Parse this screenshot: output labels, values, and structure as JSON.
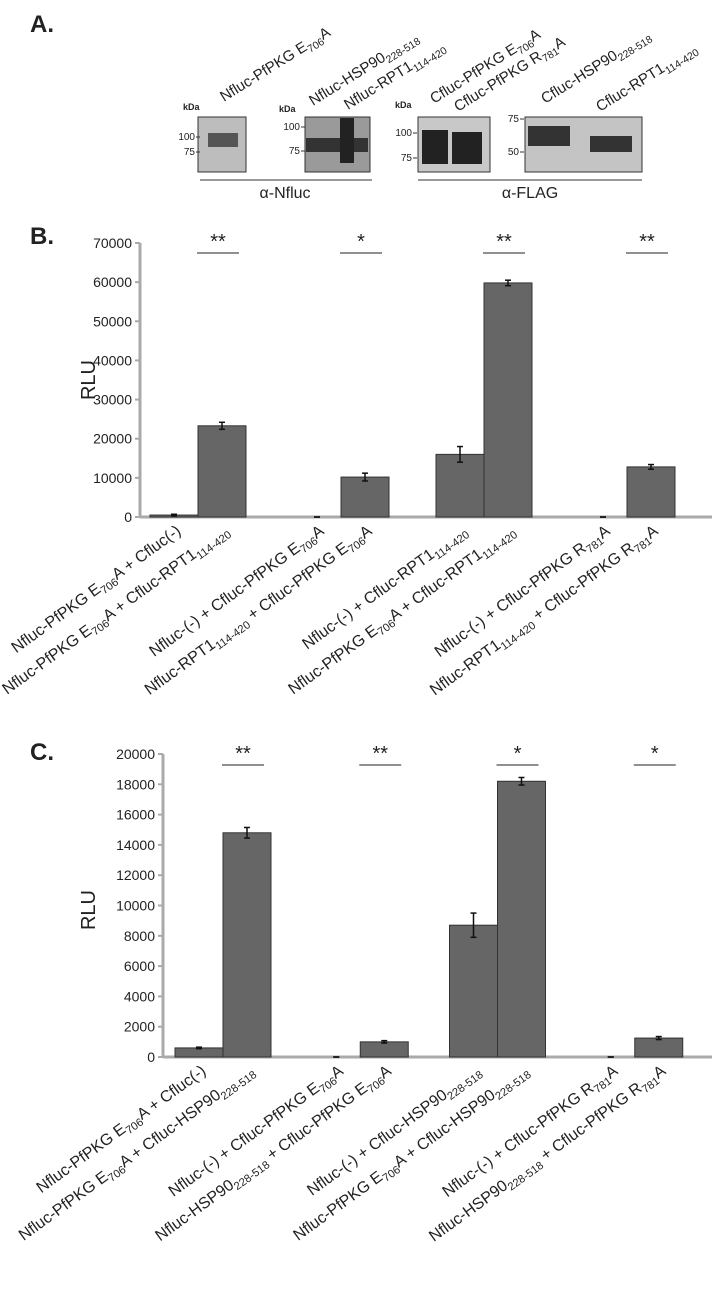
{
  "panel_labels": [
    "A.",
    "B.",
    "C."
  ],
  "panel_a": {
    "blot_labels": [
      [
        "Nfluc-PfPKG E",
        {
          "sub": "706"
        },
        "A"
      ],
      [
        "Nfluc-HSP90",
        {
          "sub": "228-518"
        }
      ],
      [
        "Nfluc-RPT1",
        {
          "sub": "114-420"
        }
      ],
      [
        "Cfluc-PfPKG E",
        {
          "sub": "706"
        },
        "A"
      ],
      [
        "Cfluc-PfPKG R",
        {
          "sub": "781"
        },
        "A"
      ],
      [
        "Cfluc-HSP90",
        {
          "sub": "228-518"
        }
      ],
      [
        "Cfluc-RPT1",
        {
          "sub": "114-420"
        }
      ]
    ],
    "blots": [
      {
        "kda": "kDa",
        "markers": [
          100,
          75
        ]
      },
      {
        "kda": "kDa",
        "markers": [
          100,
          75
        ]
      },
      {
        "kda": "kDa",
        "markers": [
          100,
          75
        ]
      },
      {
        "markers": [
          75,
          50
        ]
      }
    ],
    "antibodies": [
      "α-Nfluc",
      "α-FLAG"
    ]
  },
  "chart_data": [
    {
      "type": "bar",
      "y_label": "RLU",
      "color": "#666666",
      "categories": [
        [
          "Nfluc-PfPKG E",
          {
            "sub": "706"
          },
          "A + Cfluc(-)"
        ],
        [
          "Nfluc-PfPKG E",
          {
            "sub": "706"
          },
          "A + Cfluc-RPT1",
          {
            "sub": "114-420"
          }
        ],
        [
          "Nfluc-(-) + Cfluc-PfPKG E",
          {
            "sub": "706"
          },
          "A"
        ],
        [
          "Nfluc-RPT1",
          {
            "sub": "114-420"
          },
          " + Cfluc-PfPKG E",
          {
            "sub": "706"
          },
          "A"
        ],
        [
          "Nfluc-(-) + Cfluc-RPT1",
          {
            "sub": "114-420"
          }
        ],
        [
          "Nfluc-PfPKG E",
          {
            "sub": "706"
          },
          "A + Cfluc-RPT1",
          {
            "sub": "114-420"
          }
        ],
        [
          "Nfluc-(-) + Cfluc-PfPKG R",
          {
            "sub": "781"
          },
          "A"
        ],
        [
          "Nfluc-RPT1",
          {
            "sub": "114-420"
          },
          " + Cfluc-PfPKG R",
          {
            "sub": "781"
          },
          "A"
        ]
      ],
      "values": [
        500,
        23300,
        0,
        10200,
        16000,
        59800,
        0,
        12800
      ],
      "errors": [
        200,
        900,
        0,
        1000,
        2000,
        700,
        0,
        600
      ],
      "significance": [
        "**",
        "*",
        "**",
        "**"
      ],
      "ylim": [
        0,
        70000
      ],
      "yticks": [
        0,
        10000,
        20000,
        30000,
        40000,
        50000,
        60000,
        70000
      ]
    },
    {
      "type": "bar",
      "y_label": "RLU",
      "color": "#666666",
      "categories": [
        [
          "Nfluc-PfPKG E",
          {
            "sub": "706"
          },
          "A + Cfluc(-)"
        ],
        [
          "Nfluc-PfPKG E",
          {
            "sub": "706"
          },
          "A + Cfluc-HSP90",
          {
            "sub": "228-518"
          }
        ],
        [
          "Nfluc-(-) + Cfluc-PfPKG E",
          {
            "sub": "706"
          },
          "A"
        ],
        [
          "Nfluc-HSP90",
          {
            "sub": "228-518"
          },
          " + Cfluc-PfPKG E",
          {
            "sub": "706"
          },
          "A"
        ],
        [
          "Nfluc-(-) + Cfluc-HSP90",
          {
            "sub": "228-518"
          }
        ],
        [
          "Nfluc-PfPKG E",
          {
            "sub": "706"
          },
          "A + Cfluc-HSP90",
          {
            "sub": "228-518"
          }
        ],
        [
          "Nfluc-(-) + Cfluc-PfPKG R",
          {
            "sub": "781"
          },
          "A"
        ],
        [
          "Nfluc-HSP90",
          {
            "sub": "228-518"
          },
          " + Cfluc-PfPKG R",
          {
            "sub": "781"
          },
          "A"
        ]
      ],
      "values": [
        600,
        14800,
        0,
        1000,
        8700,
        18200,
        0,
        1250
      ],
      "errors": [
        50,
        350,
        0,
        80,
        800,
        250,
        0,
        100
      ],
      "significance": [
        "**",
        "**",
        "*",
        "*"
      ],
      "ylim": [
        0,
        20000
      ],
      "yticks": [
        0,
        2000,
        4000,
        6000,
        8000,
        10000,
        12000,
        14000,
        16000,
        18000,
        20000
      ]
    }
  ]
}
